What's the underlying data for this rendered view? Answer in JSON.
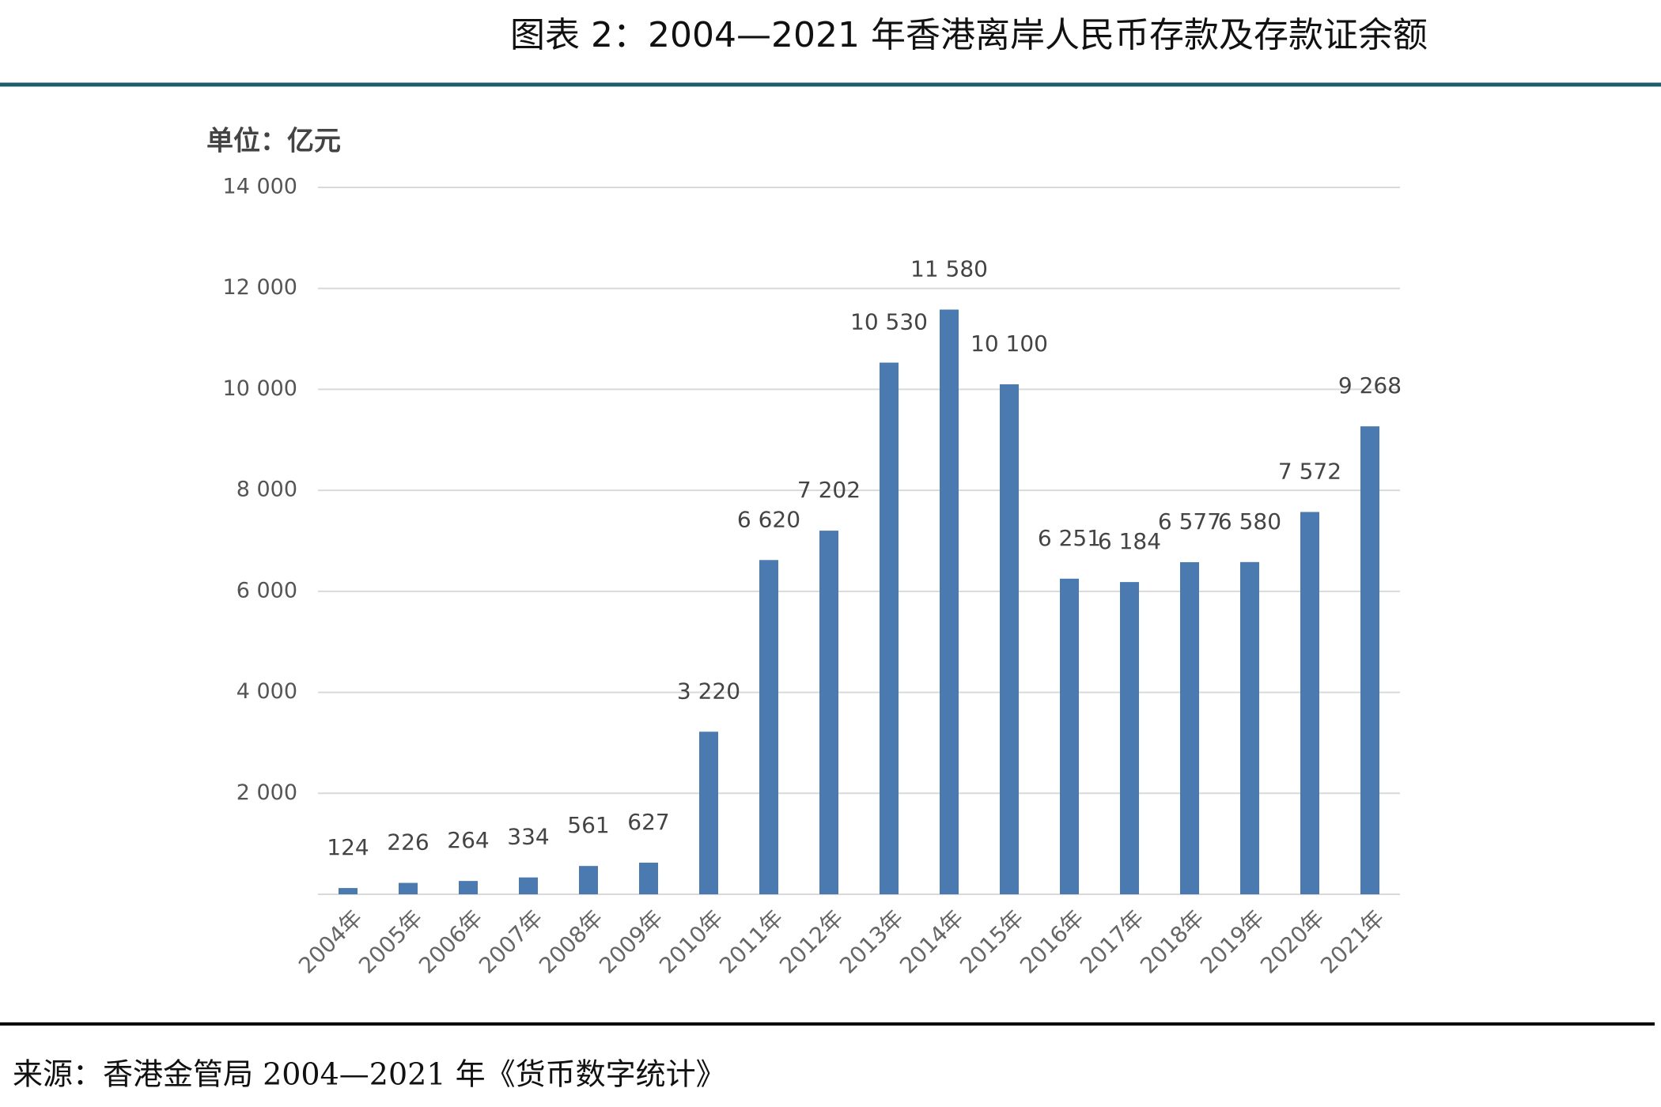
{
  "chart_data": {
    "type": "bar",
    "title": "图表 2：2004—2021 年香港离岸人民币存款及存款证余额",
    "unit_label": "单位：亿元",
    "source": "来源：香港金管局 2004—2021 年《货币数字统计》",
    "categories": [
      "2004年",
      "2005年",
      "2006年",
      "2007年",
      "2008年",
      "2009年",
      "2010年",
      "2011年",
      "2012年",
      "2013年",
      "2014年",
      "2015年",
      "2016年",
      "2017年",
      "2018年",
      "2019年",
      "2020年",
      "2021年"
    ],
    "values": [
      124,
      226,
      264,
      334,
      561,
      627,
      3220,
      6620,
      7202,
      10530,
      11580,
      10100,
      6251,
      6184,
      6577,
      6580,
      7572,
      9268
    ],
    "value_labels": [
      "124",
      "226",
      "264",
      "334",
      "561",
      "627",
      "3 220",
      "6 620",
      "7 202",
      "10 530",
      "11 580",
      "10 100",
      "6 251",
      "6 184",
      "6 577",
      "6 580",
      "7 572",
      "9 268"
    ],
    "color": "#4a7ab0",
    "ylim": [
      0,
      14000
    ],
    "yticks": [
      {
        "value": 2000,
        "label": "2 000"
      },
      {
        "value": 4000,
        "label": "4 000"
      },
      {
        "value": 6000,
        "label": "6 000"
      },
      {
        "value": 8000,
        "label": "8 000"
      },
      {
        "value": 10000,
        "label": "10 000"
      },
      {
        "value": 12000,
        "label": "12 000"
      },
      {
        "value": 14000,
        "label": "14 000"
      }
    ],
    "grid": true
  }
}
